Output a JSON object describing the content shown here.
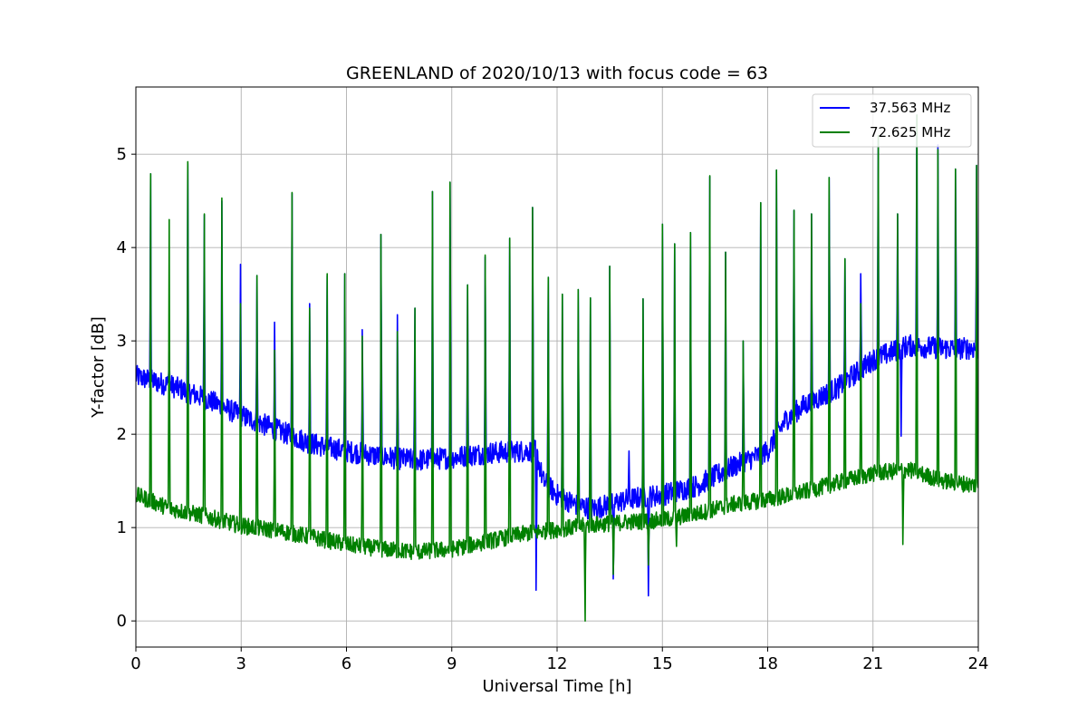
{
  "chart_data": {
    "type": "line",
    "title": "GREENLAND of 2020/10/13 with focus code = 63",
    "xlabel": "Universal Time [h]",
    "ylabel": "Y-factor [dB]",
    "xlim": [
      0,
      24
    ],
    "ylim": [
      -0.28,
      5.72
    ],
    "xticks": [
      0,
      3,
      6,
      9,
      12,
      15,
      18,
      21,
      24
    ],
    "yticks": [
      0,
      1,
      2,
      3,
      4,
      5
    ],
    "grid": true,
    "legend_position": "top-right",
    "series": [
      {
        "name": "37.563 MHz",
        "color": "#0000ff",
        "noise_amplitude": 0.12,
        "baseline": [
          [
            0,
            2.62
          ],
          [
            1,
            2.52
          ],
          [
            2,
            2.38
          ],
          [
            3,
            2.2
          ],
          [
            4,
            2.05
          ],
          [
            5,
            1.9
          ],
          [
            6,
            1.82
          ],
          [
            7,
            1.76
          ],
          [
            8,
            1.72
          ],
          [
            9,
            1.75
          ],
          [
            10,
            1.8
          ],
          [
            11,
            1.82
          ],
          [
            11.4,
            1.82
          ],
          [
            11.6,
            1.5
          ],
          [
            12,
            1.35
          ],
          [
            12.5,
            1.25
          ],
          [
            13,
            1.2
          ],
          [
            13.5,
            1.25
          ],
          [
            14,
            1.3
          ],
          [
            14.5,
            1.33
          ],
          [
            15,
            1.35
          ],
          [
            16,
            1.45
          ],
          [
            17,
            1.65
          ],
          [
            18,
            1.82
          ],
          [
            18.5,
            2.15
          ],
          [
            19,
            2.3
          ],
          [
            20,
            2.5
          ],
          [
            21,
            2.8
          ],
          [
            22,
            2.95
          ],
          [
            23,
            2.92
          ],
          [
            24,
            2.92
          ]
        ],
        "spikes": [
          [
            0.42,
            4.79
          ],
          [
            0.95,
            2.9
          ],
          [
            1.48,
            4.9
          ],
          [
            1.95,
            4.35
          ],
          [
            2.45,
            4.5
          ],
          [
            2.98,
            3.82
          ],
          [
            3.45,
            3.7
          ],
          [
            3.95,
            3.2
          ],
          [
            4.45,
            4.58
          ],
          [
            4.95,
            3.4
          ],
          [
            5.45,
            3.7
          ],
          [
            5.95,
            3.72
          ],
          [
            6.45,
            3.12
          ],
          [
            6.98,
            4.14
          ],
          [
            7.45,
            3.28
          ],
          [
            7.95,
            3.35
          ],
          [
            8.45,
            4.6
          ],
          [
            8.95,
            4.7
          ],
          [
            9.45,
            3.6
          ],
          [
            9.95,
            3.9
          ],
          [
            10.65,
            4.1
          ],
          [
            11.3,
            4.43
          ],
          [
            11.75,
            3.68
          ],
          [
            12.15,
            3.5
          ],
          [
            12.6,
            3.55
          ],
          [
            12.95,
            3.46
          ],
          [
            13.5,
            3.8
          ],
          [
            14.05,
            1.82
          ],
          [
            14.45,
            3.45
          ],
          [
            15.0,
            4.25
          ],
          [
            15.35,
            4.04
          ],
          [
            15.8,
            4.16
          ],
          [
            16.35,
            4.76
          ],
          [
            16.8,
            3.95
          ],
          [
            17.3,
            3.0
          ],
          [
            17.8,
            4.48
          ],
          [
            18.25,
            4.83
          ],
          [
            18.75,
            4.4
          ],
          [
            19.25,
            4.36
          ],
          [
            19.75,
            4.75
          ],
          [
            20.2,
            3.88
          ],
          [
            20.65,
            3.72
          ],
          [
            21.15,
            5.15
          ],
          [
            21.7,
            4.36
          ],
          [
            22.25,
            5.42
          ],
          [
            22.85,
            5.1
          ],
          [
            23.35,
            4.84
          ],
          [
            23.95,
            4.88
          ]
        ],
        "dips": [
          [
            11.4,
            0.33
          ],
          [
            13.6,
            0.45
          ],
          [
            14.6,
            0.27
          ],
          [
            21.8,
            1.98
          ]
        ]
      },
      {
        "name": "72.625 MHz",
        "color": "#008000",
        "noise_amplitude": 0.09,
        "baseline": [
          [
            0,
            1.35
          ],
          [
            1,
            1.2
          ],
          [
            2,
            1.12
          ],
          [
            3,
            1.02
          ],
          [
            4,
            0.97
          ],
          [
            5,
            0.9
          ],
          [
            6,
            0.82
          ],
          [
            7,
            0.77
          ],
          [
            8,
            0.74
          ],
          [
            9,
            0.77
          ],
          [
            10,
            0.85
          ],
          [
            11,
            0.93
          ],
          [
            12,
            0.98
          ],
          [
            13,
            1.03
          ],
          [
            14,
            1.06
          ],
          [
            15,
            1.08
          ],
          [
            16,
            1.15
          ],
          [
            17,
            1.25
          ],
          [
            18,
            1.3
          ],
          [
            19,
            1.38
          ],
          [
            20,
            1.48
          ],
          [
            21,
            1.58
          ],
          [
            22,
            1.62
          ],
          [
            23,
            1.5
          ],
          [
            24,
            1.45
          ]
        ],
        "spikes": [
          [
            0.42,
            4.79
          ],
          [
            0.95,
            4.3
          ],
          [
            1.48,
            4.92
          ],
          [
            1.95,
            4.36
          ],
          [
            2.45,
            4.53
          ],
          [
            2.98,
            3.4
          ],
          [
            3.45,
            3.7
          ],
          [
            3.95,
            2.9
          ],
          [
            4.45,
            4.59
          ],
          [
            4.95,
            3.35
          ],
          [
            5.45,
            3.72
          ],
          [
            5.95,
            3.72
          ],
          [
            6.45,
            3.05
          ],
          [
            6.98,
            4.14
          ],
          [
            7.45,
            3.1
          ],
          [
            7.95,
            3.35
          ],
          [
            8.45,
            4.6
          ],
          [
            8.95,
            4.7
          ],
          [
            9.45,
            3.6
          ],
          [
            9.95,
            3.92
          ],
          [
            10.65,
            4.1
          ],
          [
            11.3,
            4.43
          ],
          [
            11.75,
            3.68
          ],
          [
            12.15,
            3.5
          ],
          [
            12.6,
            3.55
          ],
          [
            12.95,
            3.46
          ],
          [
            13.5,
            3.8
          ],
          [
            14.45,
            3.45
          ],
          [
            15.0,
            4.25
          ],
          [
            15.35,
            4.04
          ],
          [
            15.8,
            4.16
          ],
          [
            16.35,
            4.77
          ],
          [
            16.8,
            3.95
          ],
          [
            17.3,
            3.0
          ],
          [
            17.8,
            4.48
          ],
          [
            18.25,
            4.83
          ],
          [
            18.75,
            4.4
          ],
          [
            19.25,
            4.36
          ],
          [
            19.75,
            4.75
          ],
          [
            20.2,
            3.88
          ],
          [
            20.65,
            3.4
          ],
          [
            21.15,
            5.2
          ],
          [
            21.7,
            4.36
          ],
          [
            22.25,
            5.42
          ],
          [
            22.85,
            5.05
          ],
          [
            23.35,
            4.84
          ],
          [
            23.95,
            4.88
          ]
        ],
        "dips": [
          [
            12.8,
            0.0
          ],
          [
            13.6,
            0.5
          ],
          [
            14.6,
            0.6
          ],
          [
            15.4,
            0.8
          ],
          [
            21.85,
            0.82
          ]
        ]
      }
    ]
  }
}
